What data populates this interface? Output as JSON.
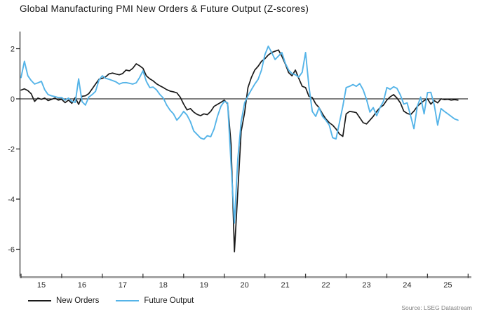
{
  "header": {
    "title": "Global Manufacturing PMI New Orders & Future Output (Z-scores)"
  },
  "footer": {
    "source": "Source: LSEG Datastream"
  },
  "legend": {
    "items": [
      {
        "label": "New Orders",
        "color": "#1a1a1a"
      },
      {
        "label": "Future Output",
        "color": "#55b4e8"
      }
    ]
  },
  "chart_data": {
    "type": "line",
    "title": "Global Manufacturing PMI New Orders & Future Output (Z-scores)",
    "x_start_year": 2015,
    "x_frequency": "monthly",
    "x_tick_labels": [
      "15",
      "16",
      "17",
      "18",
      "19",
      "20",
      "21",
      "22",
      "23",
      "24",
      "25"
    ],
    "y_ticks": [
      2,
      0,
      -2,
      -4,
      -6
    ],
    "ylim": [
      -6.9,
      2.75
    ],
    "xlim_years": [
      2014.97,
      2026.0
    ],
    "grid": false,
    "zero_line": true,
    "legend_position": "bottom-left",
    "axis_color": "#9a9a9a",
    "tick_label_color": "#262626",
    "series": [
      {
        "name": "New Orders",
        "color": "#1a1a1a",
        "width": 1.7,
        "values": [
          0.35,
          0.4,
          0.33,
          0.2,
          -0.1,
          0.03,
          -0.02,
          0.03,
          -0.07,
          -0.02,
          0.03,
          -0.05,
          -0.02,
          -0.15,
          -0.05,
          -0.18,
          0.05,
          -0.22,
          0.1,
          0.12,
          0.21,
          0.4,
          0.59,
          0.78,
          0.82,
          0.88,
          1.0,
          1.03,
          0.99,
          0.96,
          1.01,
          1.15,
          1.12,
          1.22,
          1.4,
          1.32,
          1.22,
          0.92,
          0.8,
          0.72,
          0.6,
          0.52,
          0.45,
          0.37,
          0.31,
          0.28,
          0.24,
          0.07,
          -0.21,
          -0.44,
          -0.39,
          -0.53,
          -0.62,
          -0.67,
          -0.6,
          -0.63,
          -0.5,
          -0.3,
          -0.22,
          -0.14,
          -0.05,
          -0.2,
          -1.8,
          -6.1,
          -3.7,
          -1.3,
          -0.55,
          0.45,
          0.85,
          1.15,
          1.3,
          1.5,
          1.6,
          1.75,
          1.85,
          1.9,
          1.95,
          1.7,
          1.4,
          1.05,
          0.92,
          1.15,
          0.82,
          0.5,
          0.45,
          0.1,
          0.05,
          -0.2,
          -0.35,
          -0.6,
          -0.8,
          -0.95,
          -1.05,
          -1.2,
          -1.4,
          -1.5,
          -0.6,
          -0.5,
          -0.52,
          -0.55,
          -0.75,
          -0.95,
          -1.0,
          -0.85,
          -0.7,
          -0.5,
          -0.35,
          -0.25,
          -0.05,
          0.08,
          0.17,
          0.03,
          -0.16,
          -0.49,
          -0.58,
          -0.63,
          -0.49,
          -0.3,
          -0.18,
          -0.07,
          0.0,
          -0.21,
          -0.07,
          -0.16,
          0.0,
          -0.03,
          -0.02,
          -0.05,
          -0.03,
          -0.05
        ]
      },
      {
        "name": "Future Output",
        "color": "#55b4e8",
        "width": 1.9,
        "values": [
          0.85,
          1.5,
          0.92,
          0.73,
          0.59,
          0.64,
          0.7,
          0.36,
          0.17,
          0.12,
          0.09,
          0.05,
          0.05,
          -0.05,
          0.03,
          -0.1,
          -0.14,
          0.8,
          -0.11,
          -0.25,
          0.07,
          0.17,
          0.3,
          0.75,
          0.92,
          0.82,
          0.78,
          0.73,
          0.68,
          0.59,
          0.64,
          0.65,
          0.62,
          0.59,
          0.64,
          0.85,
          1.12,
          0.7,
          0.45,
          0.47,
          0.36,
          0.17,
          0.03,
          -0.25,
          -0.45,
          -0.6,
          -0.85,
          -0.7,
          -0.5,
          -0.65,
          -0.91,
          -1.28,
          -1.42,
          -1.56,
          -1.61,
          -1.47,
          -1.51,
          -1.2,
          -0.7,
          -0.3,
          -0.1,
          -0.16,
          -2.6,
          -4.95,
          -2.4,
          -0.91,
          -0.16,
          0.12,
          0.36,
          0.59,
          0.78,
          1.15,
          1.76,
          2.1,
          1.85,
          1.57,
          1.71,
          1.85,
          1.43,
          1.15,
          1.01,
          0.96,
          0.87,
          1.06,
          1.85,
          0.5,
          -0.5,
          -0.7,
          -0.35,
          -0.7,
          -0.85,
          -1.05,
          -1.55,
          -1.6,
          -0.95,
          -0.3,
          0.45,
          0.5,
          0.57,
          0.5,
          0.61,
          0.36,
          -0.02,
          -0.53,
          -0.35,
          -0.67,
          -0.35,
          -0.1,
          0.45,
          0.38,
          0.48,
          0.42,
          0.15,
          -0.21,
          -0.16,
          -0.67,
          -1.19,
          -0.3,
          0.07,
          -0.6,
          0.25,
          0.26,
          -0.25,
          -1.05,
          -0.39,
          -0.5,
          -0.6,
          -0.7,
          -0.8,
          -0.85
        ]
      }
    ]
  }
}
